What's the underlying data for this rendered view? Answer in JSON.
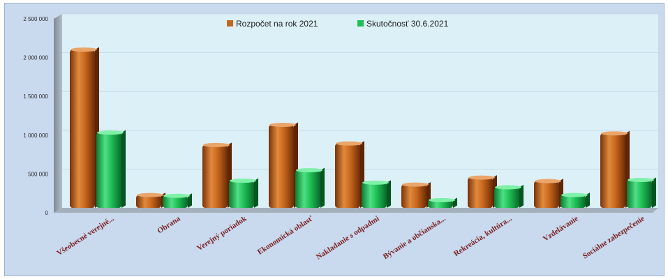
{
  "chart_data": {
    "type": "bar",
    "categories": [
      "Všeobecné verejné...",
      "Obrana",
      "Verejný poriadok",
      "Ekonomická oblasť",
      "Nakladanie s odpadmi",
      "Bývanie a občianska...",
      "Rekreácia, kultúra...",
      "Vzdelávanie",
      "Sociálne zabezpečenie"
    ],
    "series": [
      {
        "name": "Rozpočet na rok 2021",
        "color": "#c4661f",
        "values": [
          2040000,
          165000,
          810000,
          1070000,
          830000,
          300000,
          390000,
          345000,
          960000
        ]
      },
      {
        "name": "Skutočnosť 30.6.2021",
        "color": "#1fbf55",
        "values": [
          970000,
          155000,
          350000,
          485000,
          325000,
          100000,
          265000,
          165000,
          360000
        ]
      }
    ],
    "y_ticks": [
      "0",
      "500 000",
      "1 000 000",
      "1 500 000",
      "2 000 000",
      "2 500 000"
    ],
    "y_tick_values": [
      0,
      500000,
      1000000,
      1500000,
      2000000,
      2500000
    ],
    "ylim": [
      0,
      2500000
    ],
    "legend_position": "top-center",
    "grid": true
  }
}
